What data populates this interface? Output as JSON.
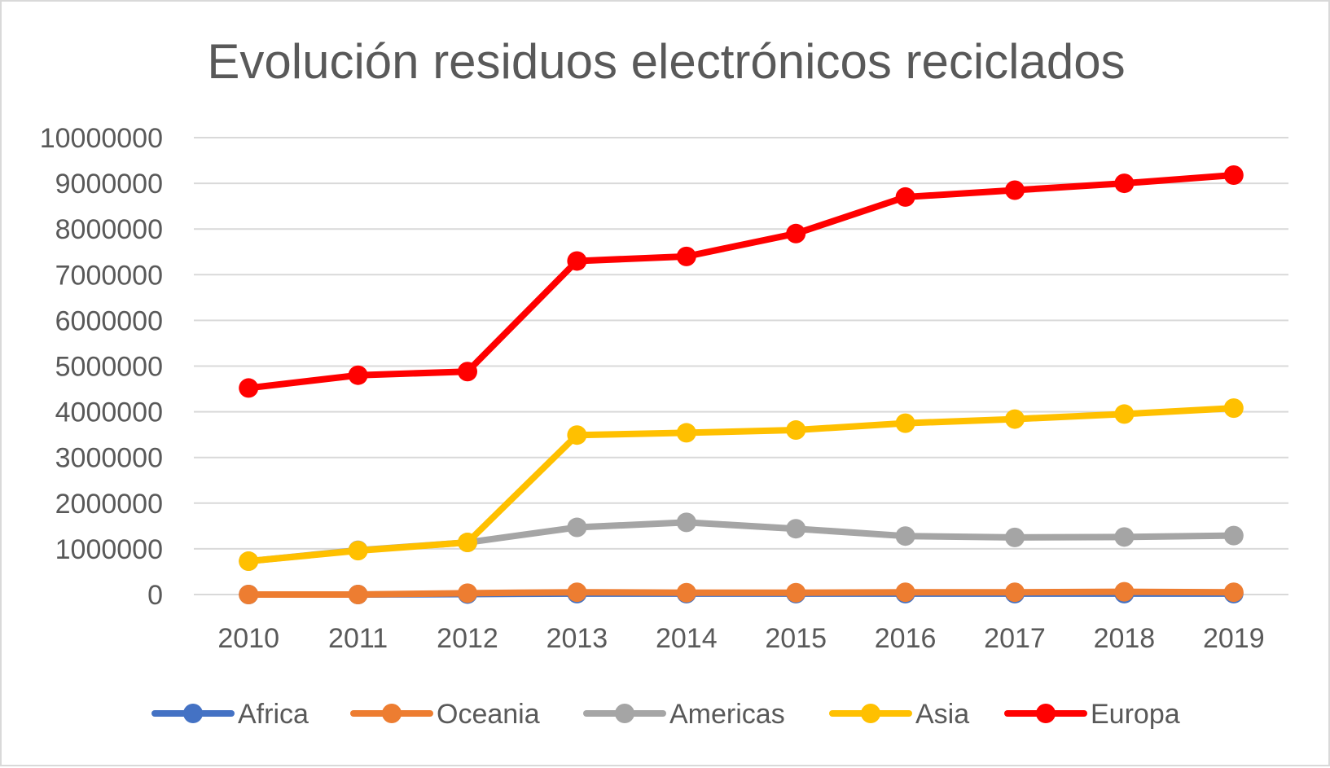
{
  "chart_data": {
    "type": "line",
    "title": "Evolución residuos electrónicos reciclados",
    "xlabel": "",
    "ylabel": "",
    "categories": [
      "2010",
      "2011",
      "2012",
      "2013",
      "2014",
      "2015",
      "2016",
      "2017",
      "2018",
      "2019"
    ],
    "ylim": [
      0,
      10000000
    ],
    "yticks": [
      "0",
      "1000000",
      "2000000",
      "3000000",
      "4000000",
      "5000000",
      "6000000",
      "7000000",
      "8000000",
      "9000000",
      "10000000"
    ],
    "grid": true,
    "legend_position": "bottom",
    "series": [
      {
        "name": "Africa",
        "color": "#4472c4",
        "values": [
          0,
          0,
          10000,
          20000,
          20000,
          20000,
          20000,
          20000,
          20000,
          20000
        ]
      },
      {
        "name": "Oceania",
        "color": "#ed7d31",
        "values": [
          0,
          0,
          30000,
          50000,
          40000,
          40000,
          50000,
          50000,
          60000,
          50000
        ]
      },
      {
        "name": "Americas",
        "color": "#a5a5a5",
        "values": [
          730000,
          970000,
          1140000,
          1470000,
          1580000,
          1440000,
          1280000,
          1250000,
          1260000,
          1290000
        ]
      },
      {
        "name": "Asia",
        "color": "#ffc000",
        "values": [
          730000,
          960000,
          1140000,
          3490000,
          3540000,
          3600000,
          3750000,
          3840000,
          3950000,
          4080000
        ]
      },
      {
        "name": "Europa",
        "color": "#ff0000",
        "values": [
          4520000,
          4800000,
          4880000,
          7300000,
          7400000,
          7900000,
          8700000,
          8850000,
          9000000,
          9180000
        ]
      }
    ]
  }
}
